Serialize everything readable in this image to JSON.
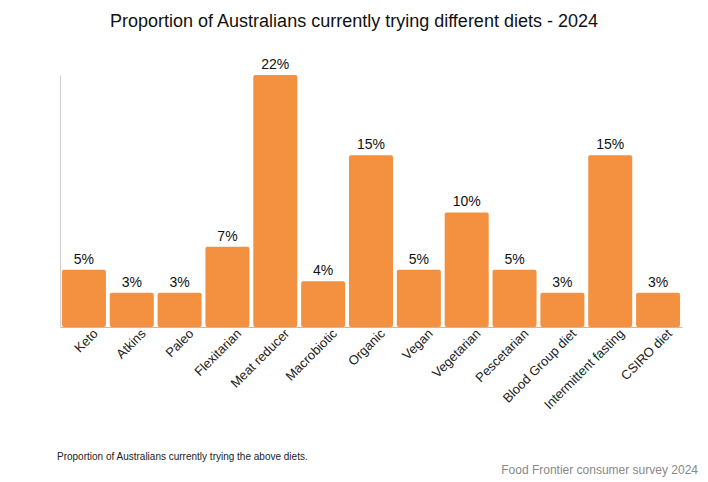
{
  "chart_data": {
    "type": "bar",
    "title": "Proportion of Australians currently trying different diets - 2024",
    "categories": [
      "Keto",
      "Atkins",
      "Paleo",
      "Flexitarian",
      "Meat reducer",
      "Macrobiotic",
      "Organic",
      "Vegan",
      "Vegetarian",
      "Pescetarian",
      "Blood Group diet",
      "Intermittent fasting",
      "CSIRO diet"
    ],
    "values": [
      5,
      3,
      3,
      7,
      22,
      4,
      15,
      5,
      10,
      5,
      3,
      15,
      3
    ],
    "value_labels": [
      "5%",
      "3%",
      "3%",
      "7%",
      "22%",
      "4%",
      "15%",
      "5%",
      "10%",
      "5%",
      "3%",
      "15%",
      "3%"
    ],
    "color": "#f39141",
    "ylim": [
      0,
      22
    ],
    "grid": false,
    "data_labels": true,
    "tick_labels": "x",
    "caption": "Proportion of Australians currently trying the above diets.",
    "source": "Food Frontier consumer survey 2024"
  }
}
